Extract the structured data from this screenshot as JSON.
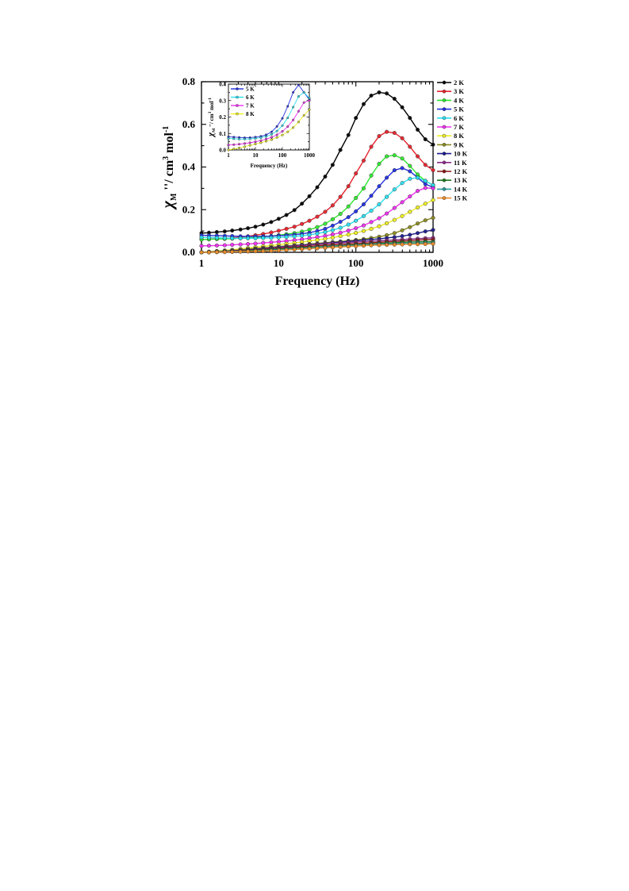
{
  "chart_data": [
    {
      "type": "line",
      "xlabel": "Frequency (Hz)",
      "ylabel": "χM''/ cm3 mol-1",
      "ylabel_parts": {
        "symbol": "χ",
        "sub": "M",
        "rest": " ''/ cm",
        "sup1": "3",
        "mid": " mol",
        "sup2": "-1"
      },
      "x_scale": "log",
      "xlim": [
        1,
        1000
      ],
      "ylim": [
        0,
        0.8
      ],
      "x_ticks": [
        1,
        10,
        100,
        1000
      ],
      "x_tick_labels": [
        "1",
        "10",
        "100",
        "1000"
      ],
      "y_ticks": [
        0.0,
        0.2,
        0.4,
        0.6,
        0.8
      ],
      "y_tick_labels": [
        "0.0",
        "0.2",
        "0.4",
        "0.6",
        "0.8"
      ],
      "grid": false,
      "legend_position": "right, outside plot",
      "x": [
        1,
        1.25,
        1.58,
        2,
        2.5,
        3.2,
        4,
        5,
        6.3,
        8,
        10,
        12.6,
        16,
        20,
        25,
        31.6,
        40,
        50,
        63,
        80,
        100,
        126,
        158,
        200,
        251,
        316,
        398,
        501,
        631,
        794,
        1000
      ],
      "series": [
        {
          "name": "2 K",
          "color": "#000000",
          "values": [
            0.09,
            0.092,
            0.095,
            0.098,
            0.102,
            0.107,
            0.113,
            0.12,
            0.13,
            0.142,
            0.157,
            0.175,
            0.198,
            0.228,
            0.263,
            0.305,
            0.355,
            0.41,
            0.48,
            0.55,
            0.63,
            0.695,
            0.735,
            0.75,
            0.745,
            0.72,
            0.68,
            0.63,
            0.575,
            0.53,
            0.505
          ]
        },
        {
          "name": "3 K",
          "color": "#e8202a",
          "values": [
            0.06,
            0.061,
            0.063,
            0.065,
            0.068,
            0.071,
            0.075,
            0.08,
            0.086,
            0.093,
            0.101,
            0.11,
            0.12,
            0.133,
            0.148,
            0.167,
            0.19,
            0.22,
            0.26,
            0.31,
            0.37,
            0.43,
            0.495,
            0.545,
            0.565,
            0.56,
            0.535,
            0.495,
            0.45,
            0.41,
            0.385
          ]
        },
        {
          "name": "4 K",
          "color": "#2ee82e",
          "values": [
            0.06,
            0.061,
            0.062,
            0.063,
            0.064,
            0.066,
            0.068,
            0.07,
            0.073,
            0.076,
            0.08,
            0.085,
            0.09,
            0.097,
            0.106,
            0.118,
            0.134,
            0.155,
            0.18,
            0.215,
            0.255,
            0.3,
            0.36,
            0.415,
            0.45,
            0.455,
            0.44,
            0.405,
            0.365,
            0.335,
            0.315
          ]
        },
        {
          "name": "5 K",
          "color": "#1f2fe0",
          "values": [
            0.08,
            0.079,
            0.078,
            0.077,
            0.076,
            0.075,
            0.074,
            0.074,
            0.075,
            0.076,
            0.078,
            0.08,
            0.083,
            0.087,
            0.092,
            0.1,
            0.11,
            0.125,
            0.143,
            0.165,
            0.192,
            0.225,
            0.265,
            0.31,
            0.35,
            0.385,
            0.395,
            0.38,
            0.35,
            0.32,
            0.305
          ]
        },
        {
          "name": "6 K",
          "color": "#29e0f0",
          "values": [
            0.07,
            0.069,
            0.068,
            0.067,
            0.066,
            0.066,
            0.066,
            0.066,
            0.067,
            0.068,
            0.07,
            0.072,
            0.075,
            0.078,
            0.082,
            0.088,
            0.095,
            0.104,
            0.115,
            0.13,
            0.148,
            0.17,
            0.195,
            0.225,
            0.26,
            0.295,
            0.325,
            0.345,
            0.35,
            0.335,
            0.315
          ]
        },
        {
          "name": "7 K",
          "color": "#f02ef0",
          "values": [
            0.03,
            0.031,
            0.032,
            0.033,
            0.035,
            0.037,
            0.039,
            0.041,
            0.044,
            0.047,
            0.05,
            0.053,
            0.057,
            0.061,
            0.066,
            0.071,
            0.077,
            0.084,
            0.092,
            0.102,
            0.113,
            0.126,
            0.142,
            0.16,
            0.182,
            0.208,
            0.235,
            0.262,
            0.288,
            0.302,
            0.3
          ]
        },
        {
          "name": "8 K",
          "color": "#f0f020",
          "values": [
            0.0,
            0.003,
            0.006,
            0.009,
            0.012,
            0.016,
            0.02,
            0.024,
            0.028,
            0.032,
            0.036,
            0.04,
            0.044,
            0.048,
            0.053,
            0.058,
            0.063,
            0.069,
            0.076,
            0.083,
            0.091,
            0.1,
            0.11,
            0.122,
            0.136,
            0.152,
            0.17,
            0.19,
            0.21,
            0.228,
            0.245
          ]
        },
        {
          "name": "9 K",
          "color": "#8a8a1e",
          "values": [
            0.0,
            0.002,
            0.004,
            0.006,
            0.009,
            0.012,
            0.015,
            0.018,
            0.021,
            0.024,
            0.027,
            0.03,
            0.033,
            0.036,
            0.039,
            0.042,
            0.045,
            0.048,
            0.051,
            0.054,
            0.058,
            0.062,
            0.067,
            0.073,
            0.08,
            0.09,
            0.103,
            0.118,
            0.135,
            0.15,
            0.162
          ]
        },
        {
          "name": "10 K",
          "color": "#1a1a8c",
          "values": [
            0.0,
            0.001,
            0.003,
            0.005,
            0.007,
            0.009,
            0.012,
            0.015,
            0.018,
            0.021,
            0.024,
            0.027,
            0.03,
            0.033,
            0.036,
            0.039,
            0.042,
            0.045,
            0.048,
            0.051,
            0.054,
            0.057,
            0.06,
            0.063,
            0.067,
            0.071,
            0.076,
            0.082,
            0.09,
            0.098,
            0.105
          ]
        },
        {
          "name": "11 K",
          "color": "#8c2a8c",
          "values": [
            0.0,
            0.001,
            0.002,
            0.004,
            0.006,
            0.008,
            0.01,
            0.013,
            0.016,
            0.019,
            0.022,
            0.025,
            0.028,
            0.031,
            0.034,
            0.037,
            0.04,
            0.042,
            0.044,
            0.046,
            0.048,
            0.05,
            0.052,
            0.054,
            0.056,
            0.058,
            0.06,
            0.062,
            0.064,
            0.066,
            0.068
          ]
        },
        {
          "name": "12 K",
          "color": "#8c1414",
          "values": [
            0.0,
            0.001,
            0.002,
            0.003,
            0.005,
            0.007,
            0.009,
            0.011,
            0.013,
            0.016,
            0.018,
            0.021,
            0.023,
            0.026,
            0.028,
            0.031,
            0.033,
            0.035,
            0.037,
            0.039,
            0.041,
            0.043,
            0.045,
            0.047,
            0.049,
            0.051,
            0.053,
            0.055,
            0.057,
            0.059,
            0.06
          ]
        },
        {
          "name": "13 K",
          "color": "#1e7a1e",
          "values": [
            0.0,
            0.001,
            0.002,
            0.003,
            0.004,
            0.005,
            0.007,
            0.009,
            0.011,
            0.013,
            0.015,
            0.017,
            0.019,
            0.021,
            0.023,
            0.025,
            0.027,
            0.029,
            0.031,
            0.033,
            0.035,
            0.037,
            0.039,
            0.041,
            0.043,
            0.045,
            0.047,
            0.048,
            0.049,
            0.05,
            0.05
          ]
        },
        {
          "name": "14 K",
          "color": "#2a9c9c",
          "values": [
            0.0,
            0.0,
            0.001,
            0.002,
            0.003,
            0.004,
            0.005,
            0.006,
            0.008,
            0.01,
            0.012,
            0.014,
            0.016,
            0.018,
            0.02,
            0.022,
            0.024,
            0.026,
            0.028,
            0.03,
            0.032,
            0.034,
            0.036,
            0.038,
            0.039,
            0.04,
            0.041,
            0.042,
            0.043,
            0.044,
            0.045
          ]
        },
        {
          "name": "15 K",
          "color": "#f08c28",
          "values": [
            0.0,
            0.0,
            0.001,
            0.001,
            0.002,
            0.003,
            0.004,
            0.005,
            0.006,
            0.007,
            0.009,
            0.011,
            0.013,
            0.015,
            0.017,
            0.019,
            0.021,
            0.023,
            0.025,
            0.027,
            0.029,
            0.031,
            0.033,
            0.034,
            0.035,
            0.036,
            0.037,
            0.038,
            0.038,
            0.039,
            0.04
          ]
        }
      ]
    },
    {
      "type": "line",
      "role": "inset",
      "xlabel": "Frequency (Hz)",
      "ylabel": "χM''/ cm3 mol-1",
      "ylabel_parts": {
        "symbol": "χ",
        "sub": "M",
        "rest": " ''/ cm",
        "sup1": "3",
        "mid": " mol",
        "sup2": "-1"
      },
      "x_scale": "log",
      "xlim": [
        1,
        1000
      ],
      "ylim": [
        0,
        0.4
      ],
      "x_ticks": [
        1,
        10,
        100,
        1000
      ],
      "x_tick_labels": [
        "1",
        "10",
        "100",
        "1000"
      ],
      "y_ticks": [
        0.0,
        0.1,
        0.2,
        0.3,
        0.4
      ],
      "y_tick_labels": [
        "0.0",
        "0.1",
        "0.2",
        "0.3",
        "0.4"
      ],
      "legend_position": "top-left",
      "x": [
        1,
        1.58,
        2.5,
        4,
        6.3,
        10,
        16,
        25,
        40,
        63,
        100,
        158,
        251,
        398,
        631,
        1000
      ],
      "series": [
        {
          "name": "5 K",
          "color": "#1f2fe0",
          "values": [
            0.08,
            0.078,
            0.076,
            0.074,
            0.075,
            0.078,
            0.083,
            0.092,
            0.11,
            0.143,
            0.192,
            0.265,
            0.35,
            0.395,
            0.35,
            0.305
          ]
        },
        {
          "name": "6 K",
          "color": "#29e0f0",
          "values": [
            0.07,
            0.068,
            0.066,
            0.066,
            0.067,
            0.07,
            0.075,
            0.082,
            0.095,
            0.115,
            0.148,
            0.195,
            0.26,
            0.325,
            0.35,
            0.315
          ]
        },
        {
          "name": "7 K",
          "color": "#f02ef0",
          "values": [
            0.03,
            0.032,
            0.035,
            0.039,
            0.044,
            0.05,
            0.057,
            0.066,
            0.077,
            0.092,
            0.113,
            0.142,
            0.182,
            0.235,
            0.288,
            0.3
          ]
        },
        {
          "name": "8 K",
          "color": "#f0f020",
          "values": [
            0.0,
            0.006,
            0.012,
            0.02,
            0.028,
            0.036,
            0.044,
            0.053,
            0.063,
            0.076,
            0.091,
            0.11,
            0.136,
            0.17,
            0.21,
            0.245
          ]
        }
      ]
    }
  ]
}
